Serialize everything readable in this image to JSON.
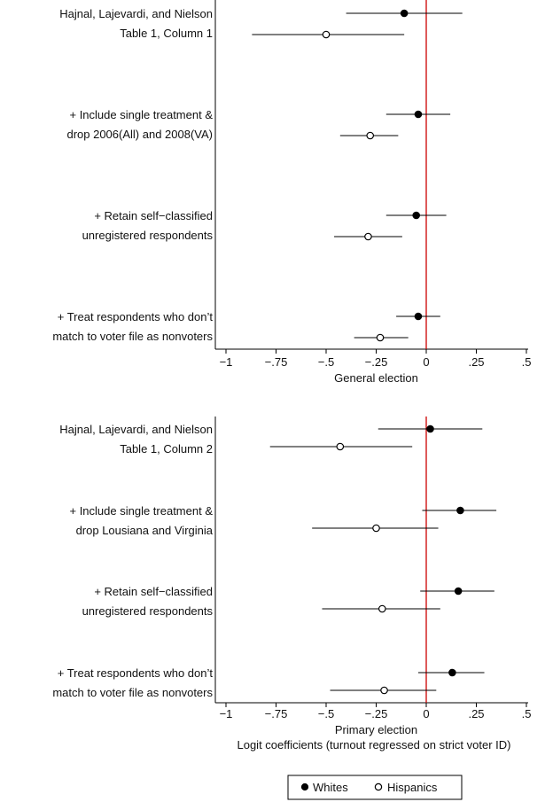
{
  "chart_data": [
    {
      "type": "scatter",
      "subtype": "coefficient-plot",
      "xlabel": "General election",
      "xlim": [
        -1,
        0.5
      ],
      "xticks": [
        -1,
        -0.75,
        -0.5,
        -0.25,
        0,
        0.25,
        0.5
      ],
      "xtick_labels": [
        "−1",
        "−.75",
        "−.5",
        "−.25",
        "0",
        ".25",
        ".5"
      ],
      "reference_line": 0,
      "reference_line_color": "#cc0000",
      "groups": [
        {
          "label_lines": [
            "Hajnal, Lajevardi, and Nielson",
            "Table 1, Column 1"
          ],
          "estimates": [
            {
              "series": "Whites",
              "est": -0.11,
              "lo": -0.4,
              "hi": 0.18
            },
            {
              "series": "Hispanics",
              "est": -0.5,
              "lo": -0.87,
              "hi": -0.11
            }
          ]
        },
        {
          "label_lines": [
            "+ Include single treatment &",
            "drop 2006(All) and 2008(VA)"
          ],
          "estimates": [
            {
              "series": "Whites",
              "est": -0.04,
              "lo": -0.2,
              "hi": 0.12
            },
            {
              "series": "Hispanics",
              "est": -0.28,
              "lo": -0.43,
              "hi": -0.14
            }
          ]
        },
        {
          "label_lines": [
            "+ Retain self−classified",
            "unregistered respondents"
          ],
          "estimates": [
            {
              "series": "Whites",
              "est": -0.05,
              "lo": -0.2,
              "hi": 0.1
            },
            {
              "series": "Hispanics",
              "est": -0.29,
              "lo": -0.46,
              "hi": -0.12
            }
          ]
        },
        {
          "label_lines": [
            "+ Treat respondents who don’t",
            "match to voter file as nonvoters"
          ],
          "estimates": [
            {
              "series": "Whites",
              "est": -0.04,
              "lo": -0.15,
              "hi": 0.07
            },
            {
              "series": "Hispanics",
              "est": -0.23,
              "lo": -0.36,
              "hi": -0.09
            }
          ]
        }
      ]
    },
    {
      "type": "scatter",
      "subtype": "coefficient-plot",
      "xlabel": "Primary election",
      "xlim": [
        -1,
        0.5
      ],
      "xticks": [
        -1,
        -0.75,
        -0.5,
        -0.25,
        0,
        0.25,
        0.5
      ],
      "xtick_labels": [
        "−1",
        "−.75",
        "−.5",
        "−.25",
        "0",
        ".25",
        ".5"
      ],
      "reference_line": 0,
      "reference_line_color": "#cc0000",
      "groups": [
        {
          "label_lines": [
            "Hajnal, Lajevardi, and Nielson",
            "Table 1, Column 2"
          ],
          "estimates": [
            {
              "series": "Whites",
              "est": 0.02,
              "lo": -0.24,
              "hi": 0.28
            },
            {
              "series": "Hispanics",
              "est": -0.43,
              "lo": -0.78,
              "hi": -0.07
            }
          ]
        },
        {
          "label_lines": [
            "+ Include single treatment &",
            "drop Lousiana and Virginia"
          ],
          "estimates": [
            {
              "series": "Whites",
              "est": 0.17,
              "lo": -0.02,
              "hi": 0.35
            },
            {
              "series": "Hispanics",
              "est": -0.25,
              "lo": -0.57,
              "hi": 0.06
            }
          ]
        },
        {
          "label_lines": [
            "+ Retain self−classified",
            "unregistered respondents"
          ],
          "estimates": [
            {
              "series": "Whites",
              "est": 0.16,
              "lo": -0.03,
              "hi": 0.34
            },
            {
              "series": "Hispanics",
              "est": -0.22,
              "lo": -0.52,
              "hi": 0.07
            }
          ]
        },
        {
          "label_lines": [
            "+ Treat respondents who don’t",
            "match to voter file as nonvoters"
          ],
          "estimates": [
            {
              "series": "Whites",
              "est": 0.13,
              "lo": -0.04,
              "hi": 0.29
            },
            {
              "series": "Hispanics",
              "est": -0.21,
              "lo": -0.48,
              "hi": 0.05
            }
          ]
        }
      ]
    }
  ],
  "shared_axis_title": "Logit coefficients (turnout regressed on strict voter ID)",
  "legend": {
    "placement": "bottom-center",
    "items": [
      {
        "name": "Whites",
        "marker": "filled-circle"
      },
      {
        "name": "Hispanics",
        "marker": "hollow-circle"
      }
    ]
  }
}
